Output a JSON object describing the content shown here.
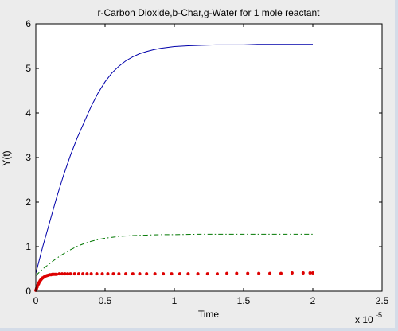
{
  "chart_data": {
    "type": "line",
    "title": "r-Carbon Dioxide,b-Char,g-Water for 1 mole reactant",
    "xlabel": "Time",
    "ylabel": "Y(t)",
    "x_exponent_label": "x 10",
    "x_exponent_power": "-5",
    "xlim": [
      0,
      2.5
    ],
    "ylim": [
      0,
      6
    ],
    "x_ticks": [
      0,
      0.5,
      1,
      1.5,
      2,
      2.5
    ],
    "x_tick_labels": [
      "0",
      "0.5",
      "1",
      "1.5",
      "2",
      "2.5"
    ],
    "y_ticks": [
      0,
      1,
      2,
      3,
      4,
      5,
      6
    ],
    "y_tick_labels": [
      "0",
      "1",
      "2",
      "3",
      "4",
      "5",
      "6"
    ],
    "grid": false,
    "series": [
      {
        "color": "#0000aa",
        "style": "solid",
        "x": [
          0,
          0.05,
          0.1,
          0.15,
          0.2,
          0.25,
          0.3,
          0.35,
          0.4,
          0.45,
          0.5,
          0.55,
          0.6,
          0.65,
          0.7,
          0.75,
          0.8,
          0.85,
          0.9,
          0.95,
          1.0,
          1.1,
          1.2,
          1.3,
          1.4,
          1.5,
          1.6,
          1.7,
          1.8,
          1.9,
          2.0
        ],
        "y": [
          0.4,
          1.0,
          1.55,
          2.1,
          2.6,
          3.05,
          3.45,
          3.8,
          4.15,
          4.45,
          4.7,
          4.9,
          5.05,
          5.17,
          5.26,
          5.33,
          5.38,
          5.42,
          5.45,
          5.47,
          5.49,
          5.51,
          5.52,
          5.53,
          5.53,
          5.53,
          5.54,
          5.54,
          5.54,
          5.54,
          5.54
        ]
      },
      {
        "color": "#007700",
        "style": "dashdot",
        "x": [
          0,
          0.05,
          0.1,
          0.15,
          0.2,
          0.25,
          0.3,
          0.35,
          0.4,
          0.45,
          0.5,
          0.55,
          0.6,
          0.7,
          0.8,
          0.9,
          1.0,
          1.2,
          1.4,
          1.6,
          1.8,
          2.0
        ],
        "y": [
          0.35,
          0.5,
          0.62,
          0.74,
          0.84,
          0.93,
          1.01,
          1.07,
          1.12,
          1.16,
          1.19,
          1.21,
          1.23,
          1.25,
          1.26,
          1.27,
          1.27,
          1.28,
          1.28,
          1.28,
          1.28,
          1.28
        ]
      },
      {
        "color": "#dd0000",
        "style": "markers",
        "x": [
          0.0,
          0.005,
          0.01,
          0.015,
          0.02,
          0.025,
          0.03,
          0.035,
          0.04,
          0.045,
          0.05,
          0.06,
          0.07,
          0.08,
          0.09,
          0.1,
          0.11,
          0.12,
          0.13,
          0.14,
          0.15,
          0.17,
          0.19,
          0.21,
          0.23,
          0.25,
          0.28,
          0.31,
          0.34,
          0.37,
          0.4,
          0.44,
          0.48,
          0.52,
          0.56,
          0.6,
          0.65,
          0.7,
          0.75,
          0.8,
          0.86,
          0.92,
          0.98,
          1.04,
          1.1,
          1.17,
          1.24,
          1.31,
          1.38,
          1.45,
          1.53,
          1.61,
          1.69,
          1.77,
          1.85,
          1.93,
          1.98,
          2.0
        ],
        "y": [
          0.02,
          0.06,
          0.1,
          0.14,
          0.17,
          0.2,
          0.23,
          0.25,
          0.27,
          0.29,
          0.3,
          0.32,
          0.34,
          0.35,
          0.36,
          0.37,
          0.37,
          0.38,
          0.38,
          0.38,
          0.38,
          0.39,
          0.39,
          0.39,
          0.39,
          0.39,
          0.39,
          0.39,
          0.39,
          0.39,
          0.39,
          0.39,
          0.39,
          0.39,
          0.39,
          0.39,
          0.39,
          0.39,
          0.39,
          0.39,
          0.39,
          0.39,
          0.39,
          0.39,
          0.39,
          0.39,
          0.39,
          0.39,
          0.4,
          0.4,
          0.4,
          0.4,
          0.4,
          0.4,
          0.41,
          0.41,
          0.41,
          0.41
        ]
      }
    ]
  }
}
